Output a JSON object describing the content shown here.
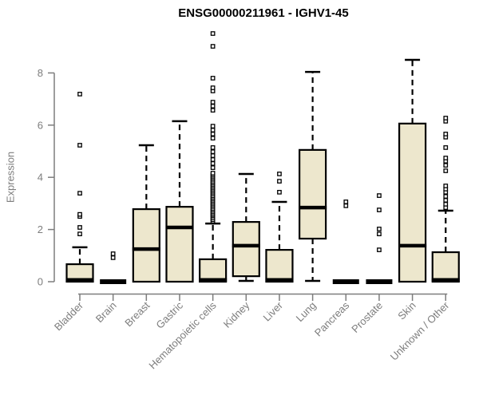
{
  "chart_data": {
    "type": "boxplot",
    "title": "ENSG00000211961 - IGHV1-45",
    "ylabel": "Expression",
    "xlabel": "",
    "ylim": [
      0,
      9.6
    ],
    "yticks": [
      0,
      2,
      4,
      6,
      8
    ],
    "grid": false,
    "legend": "none",
    "categories": [
      "Bladder",
      "Brain",
      "Breast",
      "Gastric",
      "Hematopoietic cells",
      "Kidney",
      "Liver",
      "Lung",
      "Pancreas",
      "Prostate",
      "Skin",
      "Unknown / Other"
    ],
    "series": [
      {
        "name": "Bladder",
        "q1": 0,
        "median": 0.07,
        "q3": 0.67,
        "whisker_low": 0,
        "whisker_high": 1.32,
        "outliers": [
          1.83,
          2.08,
          2.5,
          2.58,
          3.39,
          5.23,
          7.19
        ]
      },
      {
        "name": "Brain",
        "q1": 0,
        "median": 0,
        "q3": 0,
        "whisker_low": 0,
        "whisker_high": 0,
        "outliers": [
          0.92,
          1.07
        ]
      },
      {
        "name": "Breast",
        "q1": 0,
        "median": 1.25,
        "q3": 2.78,
        "whisker_low": 0,
        "whisker_high": 5.23,
        "outliers": []
      },
      {
        "name": "Gastric",
        "q1": 0,
        "median": 2.08,
        "q3": 2.87,
        "whisker_low": 0,
        "whisker_high": 6.15,
        "outliers": []
      },
      {
        "name": "Hematopoietic cells",
        "q1": 0,
        "median": 0.07,
        "q3": 0.86,
        "whisker_low": 0,
        "whisker_high": 2.23,
        "outliers": [
          2.32,
          2.38,
          2.45,
          2.52,
          2.57,
          2.63,
          2.69,
          2.75,
          2.81,
          2.88,
          2.94,
          3.0,
          3.06,
          3.12,
          3.18,
          3.24,
          3.3,
          3.37,
          3.43,
          3.49,
          3.55,
          3.61,
          3.67,
          3.73,
          3.79,
          3.85,
          3.92,
          3.98,
          4.04,
          4.1,
          4.16,
          4.37,
          4.53,
          4.68,
          4.83,
          4.98,
          5.14,
          5.5,
          5.66,
          5.81,
          5.96,
          6.57,
          6.73,
          6.88,
          7.31,
          7.43,
          7.8,
          9.02,
          9.51
        ]
      },
      {
        "name": "Kidney",
        "q1": 0.21,
        "median": 1.38,
        "q3": 2.29,
        "whisker_low": 0.03,
        "whisker_high": 4.13,
        "outliers": []
      },
      {
        "name": "Liver",
        "q1": 0,
        "median": 0.07,
        "q3": 1.22,
        "whisker_low": 0,
        "whisker_high": 3.06,
        "outliers": [
          3.43,
          3.85,
          4.13
        ]
      },
      {
        "name": "Lung",
        "q1": 1.65,
        "median": 2.84,
        "q3": 5.05,
        "whisker_low": 0.03,
        "whisker_high": 8.04,
        "outliers": []
      },
      {
        "name": "Pancreas",
        "q1": 0,
        "median": 0,
        "q3": 0,
        "whisker_low": 0,
        "whisker_high": 0,
        "outliers": [
          2.91,
          3.06
        ]
      },
      {
        "name": "Prostate",
        "q1": 0,
        "median": 0,
        "q3": 0,
        "whisker_low": 0,
        "whisker_high": 0,
        "outliers": [
          1.22,
          1.83,
          2.02,
          2.75,
          3.3
        ]
      },
      {
        "name": "Skin",
        "q1": 0,
        "median": 1.38,
        "q3": 6.06,
        "whisker_low": 0,
        "whisker_high": 8.5,
        "outliers": []
      },
      {
        "name": "Unknown / Other",
        "q1": 0,
        "median": 0.07,
        "q3": 1.13,
        "whisker_low": 0,
        "whisker_high": 2.72,
        "outliers": [
          2.84,
          2.97,
          3.12,
          3.27,
          3.43,
          3.55,
          3.67,
          4.25,
          4.46,
          4.62,
          4.74,
          5.14,
          5.54,
          5.66,
          6.15,
          6.27
        ]
      }
    ],
    "colors": {
      "box_fill": "#EDE7CD",
      "box_border": "#000000",
      "median": "#000000",
      "whisker": "#000000",
      "outlier_stroke": "#000000",
      "outlier_fill": "#ffffff",
      "axis": "#7d7d7d",
      "tick_label": "#7d7d7d",
      "title": "#000000",
      "background": "#ffffff"
    }
  }
}
